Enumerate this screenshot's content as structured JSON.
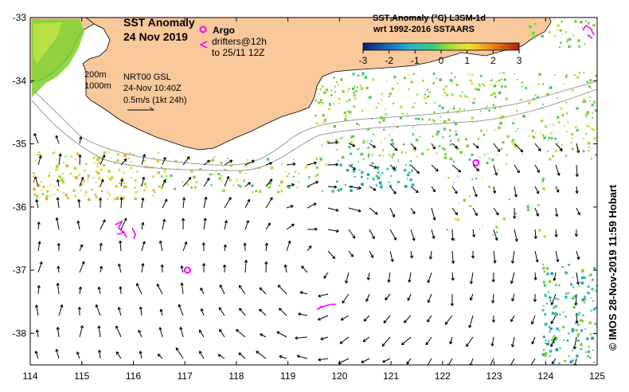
{
  "map": {
    "title_line1": "SST Anomaly",
    "title_line2": "24 Nov 2019",
    "argo_label": "Argo",
    "drifters_line1": "drifters@12h",
    "drifters_line2": "to 25/11 12Z",
    "isobath_200": "200m",
    "isobath_1000": "1000m",
    "currents_line1": "NRT00 GSL",
    "currents_line2": "24-Nov 10:40Z",
    "currents_line3": "0.5m/s (1kt 24h)",
    "colorbar_title1": "SST Anomaly (°C) L3SM-1d",
    "colorbar_title2": "wrt 1992-2016 SSTAARS",
    "colorbar_ticks": [
      "-3",
      "-2",
      "-1",
      "0",
      "1",
      "2",
      "3"
    ],
    "colorbar_range": [
      -3,
      3
    ],
    "lon_ticks": [
      "114",
      "115",
      "116",
      "117",
      "118",
      "119",
      "120",
      "121",
      "122",
      "123",
      "124",
      "125"
    ],
    "lat_ticks": [
      "-33",
      "-34",
      "-35",
      "-36",
      "-37",
      "-38"
    ],
    "lon_range": [
      114,
      125
    ],
    "lat_range": [
      -38.5,
      -33
    ],
    "credit": "© IMOS 28-Nov-2019 11:59 Hobart",
    "argo_floats": [
      {
        "lon": 117.05,
        "lat": -37.0
      },
      {
        "lon": 122.65,
        "lat": -35.3
      }
    ],
    "colors": {
      "land": "#f9c89b",
      "argo": "#ff00ff",
      "drifter": "#ff00ff",
      "isobath": "#9a9a9a"
    }
  }
}
